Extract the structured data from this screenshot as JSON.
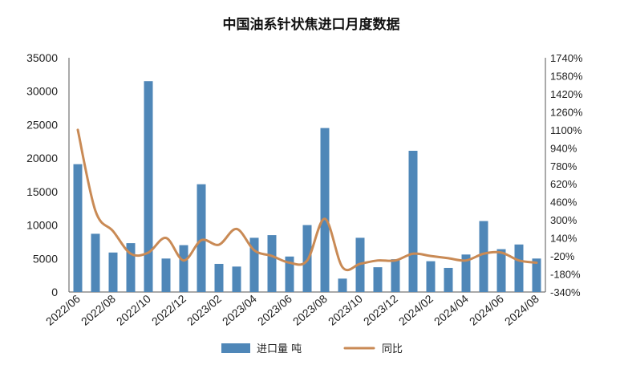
{
  "chart_data": {
    "type": "bar+line",
    "title": "中国油系针状焦进口月度数据",
    "categories": [
      "2022/06",
      "2022/07",
      "2022/08",
      "2022/09",
      "2022/10",
      "2022/11",
      "2022/12",
      "2023/01",
      "2023/02",
      "2023/03",
      "2023/04",
      "2023/05",
      "2023/06",
      "2023/07",
      "2023/08",
      "2023/09",
      "2023/10",
      "2023/11",
      "2023/12",
      "2024/01",
      "2024/02",
      "2024/03",
      "2024/04",
      "2024/05",
      "2024/06",
      "2024/07",
      "2024/08"
    ],
    "x_tick_labels": [
      "2022/06",
      "2022/08",
      "2022/10",
      "2022/12",
      "2023/02",
      "2023/04",
      "2023/06",
      "2023/08",
      "2023/10",
      "2023/12",
      "2024/02",
      "2024/04",
      "2024/06",
      "2024/08"
    ],
    "series": [
      {
        "name": "进口量 吨",
        "type": "bar",
        "axis": "left",
        "color": "#4f87b8",
        "values": [
          19100,
          8700,
          5900,
          7300,
          31500,
          5000,
          7000,
          16100,
          4200,
          3800,
          8100,
          8500,
          5300,
          10000,
          24500,
          2000,
          8100,
          3700,
          4900,
          21100,
          4600,
          3600,
          5600,
          10600,
          6400,
          7100,
          5000
        ]
      },
      {
        "name": "同比",
        "type": "line",
        "axis": "right",
        "color": "#c98a55",
        "values": [
          1100,
          380,
          200,
          0,
          10,
          140,
          -60,
          120,
          80,
          220,
          30,
          -20,
          -80,
          -60,
          310,
          -120,
          -90,
          -60,
          -60,
          0,
          -20,
          -40,
          -60,
          0,
          10,
          -60,
          -80
        ]
      }
    ],
    "y_left": {
      "min": 0,
      "max": 35000,
      "ticks": [
        0,
        5000,
        10000,
        15000,
        20000,
        25000,
        30000,
        35000
      ]
    },
    "y_right": {
      "min": -340,
      "max": 1740,
      "ticks": [
        -340,
        -180,
        -20,
        140,
        300,
        460,
        620,
        780,
        940,
        1100,
        1260,
        1420,
        1580,
        1740
      ],
      "tick_labels": [
        "-340%",
        "-180%",
        "-20%",
        "140%",
        "300%",
        "460%",
        "620%",
        "780%",
        "940%",
        "1100%",
        "1260%",
        "1420%",
        "1580%",
        "1740%"
      ]
    },
    "grid": false,
    "legend_position": "bottom"
  }
}
